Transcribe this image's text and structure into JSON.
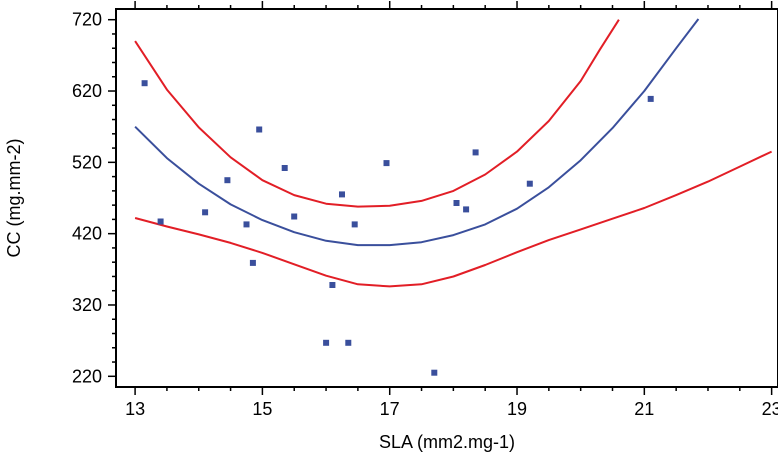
{
  "chart_data": {
    "type": "scatter",
    "title": "",
    "xlabel": "SLA (mm2.mg-1)",
    "ylabel": "CC (mg.mm-2)",
    "xlim": [
      12.7,
      23.1
    ],
    "ylim": [
      205,
      735
    ],
    "xticks": [
      13,
      15,
      17,
      19,
      21,
      23
    ],
    "yticks": [
      220,
      320,
      420,
      520,
      620,
      720
    ],
    "grid": false,
    "legend": "none",
    "points": {
      "color": "#3a4f9c",
      "x": [
        13.15,
        13.4,
        14.1,
        14.45,
        14.75,
        14.85,
        14.95,
        15.35,
        15.5,
        16.0,
        16.1,
        16.25,
        16.35,
        16.45,
        16.95,
        17.7,
        18.05,
        18.2,
        18.35,
        19.2,
        21.1
      ],
      "y": [
        631,
        437,
        450,
        495,
        433,
        379,
        566,
        512,
        444,
        267,
        348,
        475,
        267,
        433,
        519,
        225,
        463,
        454,
        534,
        490,
        609
      ]
    },
    "series": [
      {
        "color": "#e21e26",
        "x": [
          13.0,
          13.5,
          14.0,
          14.5,
          15.0,
          15.5,
          16.0,
          16.5,
          17.0,
          17.5,
          18.0,
          18.5,
          19.0,
          19.5,
          20.0,
          20.3,
          20.6
        ],
        "y": [
          690,
          622,
          569,
          527,
          495,
          474,
          462,
          458,
          459,
          466,
          480,
          503,
          535,
          578,
          634,
          678,
          720
        ]
      },
      {
        "color": "#3a4f9c",
        "x": [
          13.0,
          13.5,
          14.0,
          14.5,
          15.0,
          15.5,
          16.0,
          16.5,
          17.0,
          17.5,
          18.0,
          18.5,
          19.0,
          19.5,
          20.0,
          20.5,
          21.0,
          21.5,
          21.85
        ],
        "y": [
          570,
          526,
          490,
          461,
          439,
          422,
          410,
          404,
          404,
          408,
          418,
          433,
          455,
          485,
          523,
          568,
          620,
          680,
          721
        ]
      },
      {
        "color": "#e21e26",
        "x": [
          13.0,
          13.5,
          14.0,
          14.5,
          15.0,
          15.5,
          16.0,
          16.5,
          17.0,
          17.5,
          18.0,
          18.5,
          19.0,
          19.5,
          20.0,
          20.5,
          21.0,
          21.5,
          22.0,
          22.5,
          23.0
        ],
        "y": [
          442,
          430,
          419,
          407,
          393,
          377,
          361,
          349,
          346,
          349,
          360,
          376,
          394,
          411,
          426,
          441,
          456,
          474,
          493,
          514,
          535
        ]
      }
    ]
  }
}
